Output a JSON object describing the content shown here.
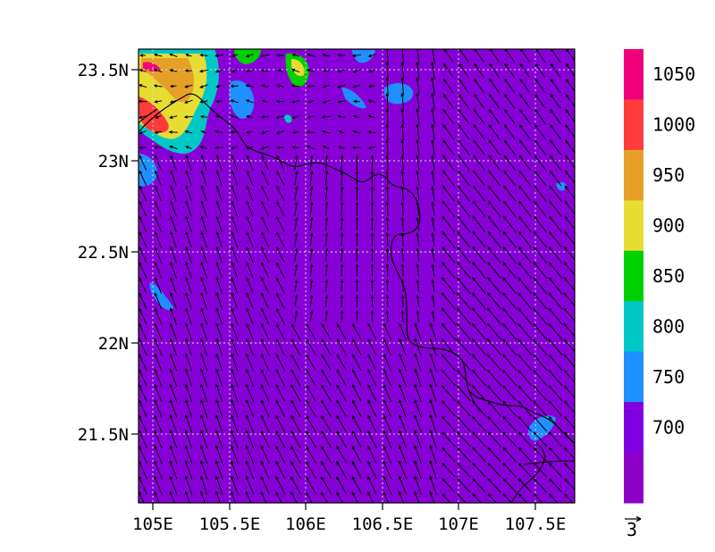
{
  "map": {
    "lat_axis": [
      "23.5N",
      "23N",
      "22.5N",
      "22N",
      "21.5N"
    ],
    "lon_axis": [
      "105E",
      "105.5E",
      "106E",
      "106.5E",
      "107E",
      "107.5E"
    ],
    "grid": "dotted",
    "field_background_color": "#8800d8",
    "vector_color": "#000000",
    "boundary_color": "#000000"
  },
  "colorbar": {
    "levels": [
      "1050",
      "1000",
      "950",
      "900",
      "850",
      "800",
      "750",
      "700"
    ],
    "colors": [
      "#8e00c8",
      "#8000e0",
      "#1e90ff",
      "#00c8c8",
      "#00d000",
      "#e6dc32",
      "#e6a028",
      "#ff3c3c",
      "#f0007a"
    ],
    "reference_vector_label": "3"
  }
}
